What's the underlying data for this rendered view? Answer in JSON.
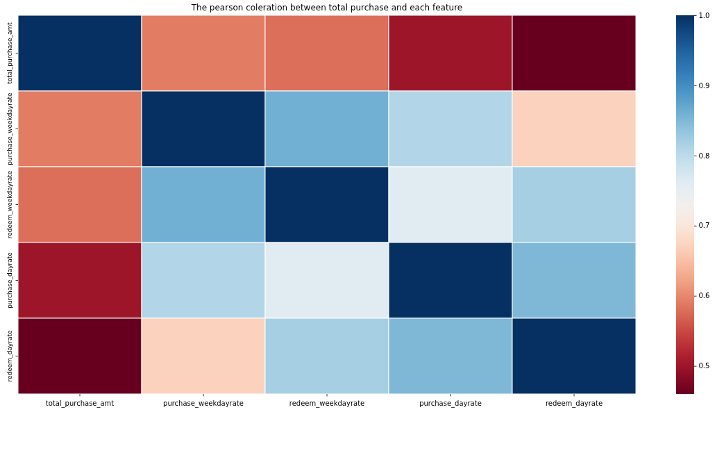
{
  "chart_data": {
    "type": "heatmap",
    "title": "The pearson coleration between total purchase and each feature",
    "categories": [
      "total_purchase_amt",
      "purchase_weekdayrate",
      "redeem_weekdayrate",
      "purchase_dayrate",
      "redeem_dayrate"
    ],
    "y_categories": [
      "total_purchase_amt",
      "purchase_weekdayrate",
      "redeem_weekdayrate",
      "purchase_dayrate",
      "redeem_dayrate"
    ],
    "cells": [
      [
        1.0,
        0.59,
        0.58,
        0.5,
        0.46
      ],
      [
        0.59,
        1.0,
        0.86,
        0.81,
        0.67
      ],
      [
        0.58,
        0.86,
        1.0,
        0.76,
        0.82
      ],
      [
        0.5,
        0.81,
        0.76,
        1.0,
        0.85
      ],
      [
        0.46,
        0.67,
        0.82,
        0.85,
        1.0
      ]
    ],
    "clim": [
      0.46,
      1.0
    ],
    "cticks": [
      0.5,
      0.6,
      0.7,
      0.8,
      0.9,
      {
        "value": 1.0,
        "label": "1.0"
      }
    ]
  }
}
